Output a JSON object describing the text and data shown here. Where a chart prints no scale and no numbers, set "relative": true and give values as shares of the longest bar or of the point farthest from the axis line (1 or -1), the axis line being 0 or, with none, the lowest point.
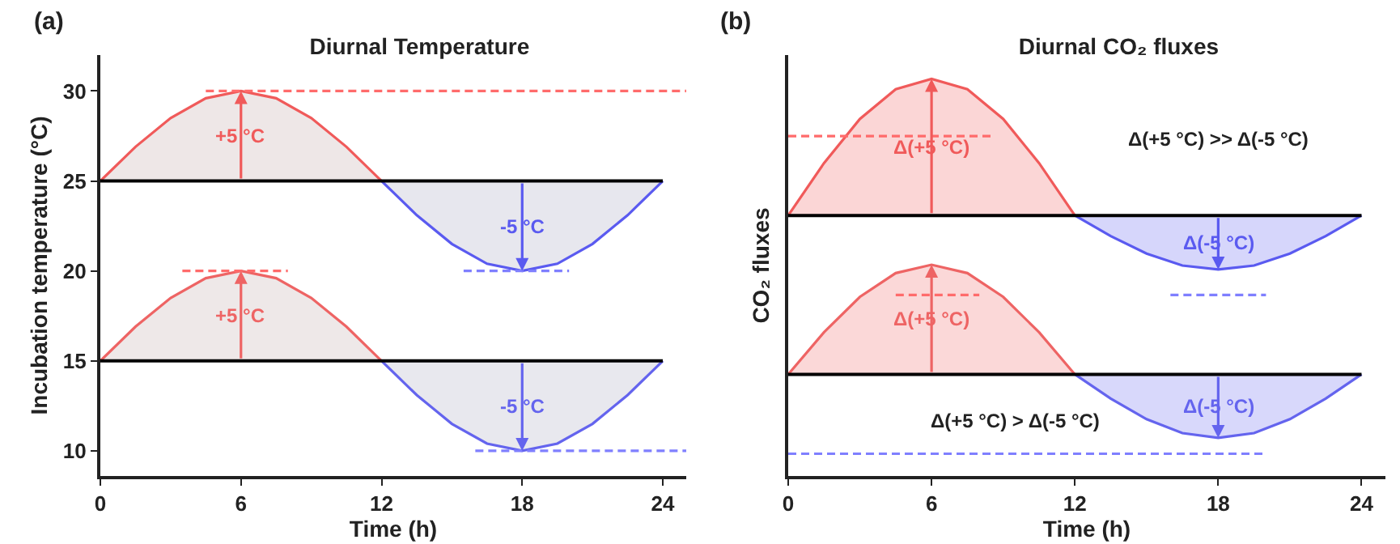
{
  "chart_data": [
    {
      "type": "line",
      "title": "Diurnal Temperature",
      "xlabel": "Time (h)",
      "ylabel": "Incubation temperature (°C)",
      "xlim": [
        0,
        25
      ],
      "xticks": [
        0,
        6,
        12,
        18,
        24
      ],
      "ylim": [
        8.6,
        32
      ],
      "yticks": [
        10,
        15,
        20,
        25,
        30
      ],
      "ref_lines": [
        {
          "axis": "y",
          "value": 25,
          "color": "#000000"
        },
        {
          "axis": "y",
          "value": 15,
          "color": "#000000"
        }
      ],
      "series": [
        {
          "color": "#f05a5a",
          "x": [
            0,
            1.5,
            3,
            4.5,
            6,
            7.5,
            9,
            10.5,
            12
          ],
          "values": [
            25,
            26.9,
            28.5,
            29.6,
            30,
            29.6,
            28.5,
            26.9,
            25
          ],
          "lower": [
            25,
            25,
            25,
            25,
            25,
            25,
            25,
            25,
            25
          ],
          "upper": [
            25,
            26.9,
            28.5,
            29.6,
            30,
            29.6,
            28.5,
            26.9,
            25
          ]
        },
        {
          "color": "#5a5af0",
          "x": [
            12,
            13.5,
            15,
            16.5,
            18,
            19.5,
            21,
            22.5,
            24
          ],
          "values": [
            25,
            23.1,
            21.5,
            20.4,
            20,
            20.4,
            21.5,
            23.1,
            25
          ],
          "lower": [
            25,
            23.1,
            21.5,
            20.4,
            20,
            20.4,
            21.5,
            23.1,
            25
          ],
          "upper": [
            25,
            25,
            25,
            25,
            25,
            25,
            25,
            25,
            25
          ]
        },
        {
          "color": "#ee6464",
          "x": [
            0,
            1.5,
            3,
            4.5,
            6,
            7.5,
            9,
            10.5,
            12
          ],
          "values": [
            15,
            16.9,
            18.5,
            19.6,
            20,
            19.6,
            18.5,
            16.9,
            15
          ],
          "lower": [
            15,
            15,
            15,
            15,
            15,
            15,
            15,
            15,
            15
          ],
          "upper": [
            15,
            16.9,
            18.5,
            19.6,
            20,
            19.6,
            18.5,
            16.9,
            15
          ]
        },
        {
          "color": "#6464ee",
          "x": [
            12,
            13.5,
            15,
            16.5,
            18,
            19.5,
            21,
            22.5,
            24
          ],
          "values": [
            15,
            13.1,
            11.5,
            10.4,
            10,
            10.4,
            11.5,
            13.1,
            15
          ],
          "lower": [
            15,
            13.1,
            11.5,
            10.4,
            10,
            10.4,
            11.5,
            13.1,
            15
          ],
          "upper": [
            15,
            15,
            15,
            15,
            15,
            15,
            15,
            15,
            15
          ]
        },
        {
          "color": "#ff6b6b",
          "line_style": "dashed",
          "x": [
            4.5,
            25
          ],
          "values": [
            30,
            30
          ]
        },
        {
          "color": "#ff6b6b",
          "line_style": "dashed",
          "x": [
            3.5,
            8
          ],
          "values": [
            20,
            20
          ]
        },
        {
          "color": "#7f7fff",
          "line_style": "dashed",
          "x": [
            15.5,
            20
          ],
          "values": [
            20,
            20
          ]
        },
        {
          "color": "#7f7fff",
          "line_style": "dashed",
          "x": [
            16,
            25
          ],
          "values": [
            10,
            10
          ]
        }
      ],
      "annotations": [
        "(a)",
        "+5 °C",
        "-5 °C",
        "+5 °C",
        "-5 °C"
      ]
    },
    {
      "type": "area",
      "relative": true,
      "title": "Diurnal CO₂ fluxes",
      "xlabel": "Time (h)",
      "ylabel": "CO₂ fluxes",
      "xlim": [
        0,
        25
      ],
      "xticks": [
        0,
        6,
        12,
        18,
        24
      ],
      "ref_lines": [
        {
          "axis": "y",
          "value": 0.656,
          "color": "#000000"
        },
        {
          "axis": "y",
          "value": 0.256,
          "color": "#000000"
        }
      ],
      "series": [
        {
          "color": "#f05a5a",
          "x": [
            0,
            1.5,
            3,
            4.5,
            6,
            7.5,
            9,
            10.5,
            12
          ],
          "values": [
            0.656,
            0.788,
            0.899,
            0.974,
            1.0,
            0.974,
            0.899,
            0.788,
            0.656
          ]
        },
        {
          "color": "#5a5af0",
          "x": [
            12,
            13.5,
            15,
            16.5,
            18,
            19.5,
            21,
            22.5,
            24
          ],
          "values": [
            0.656,
            0.604,
            0.56,
            0.53,
            0.52,
            0.53,
            0.56,
            0.604,
            0.656
          ]
        },
        {
          "color": "#ee6464",
          "x": [
            0,
            1.5,
            3,
            4.5,
            6,
            7.5,
            9,
            10.5,
            12
          ],
          "values": [
            0.256,
            0.362,
            0.451,
            0.511,
            0.532,
            0.511,
            0.451,
            0.362,
            0.256
          ]
        },
        {
          "color": "#6464ee",
          "x": [
            12,
            13.5,
            15,
            16.5,
            18,
            19.5,
            21,
            22.5,
            24
          ],
          "values": [
            0.256,
            0.195,
            0.143,
            0.108,
            0.096,
            0.108,
            0.143,
            0.195,
            0.256
          ]
        },
        {
          "type": "line",
          "color": "#ff6b6b",
          "line_style": "dashed",
          "x": [
            0,
            8.5
          ],
          "values": [
            0.856,
            0.856
          ]
        },
        {
          "type": "line",
          "color": "#ff6b6b",
          "line_style": "dashed",
          "x": [
            4.5,
            8
          ],
          "values": [
            0.456,
            0.456
          ]
        },
        {
          "type": "line",
          "color": "#7f7fff",
          "line_style": "dashed",
          "x": [
            16,
            20
          ],
          "values": [
            0.456,
            0.456
          ]
        },
        {
          "type": "line",
          "color": "#7f7fff",
          "line_style": "dashed",
          "x": [
            0,
            20
          ],
          "values": [
            0.056,
            0.056
          ]
        }
      ],
      "annotations": [
        "(b)",
        "Δ(+5 °C)",
        "Δ(-5 °C)",
        "Δ(+5 °C)",
        "Δ(-5 °C)",
        "Δ(+5 °C) >> Δ(-5 °C)",
        "Δ(+5 °C) > Δ(-5 °C)"
      ]
    }
  ]
}
